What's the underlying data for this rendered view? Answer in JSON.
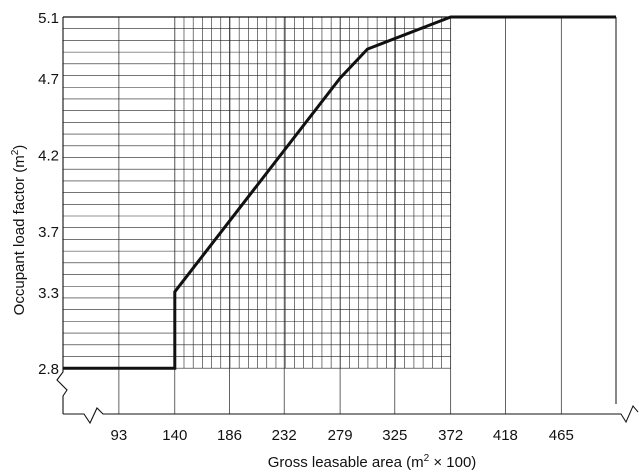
{
  "chart_data": {
    "type": "line",
    "title": "",
    "xlabel": "Gross leasable area (m",
    "xlabel_sup": "2",
    "xlabel_tail": " × 100)",
    "ylabel": "Occupant load factor (m",
    "ylabel_sup": "2",
    "ylabel_tail": ")",
    "x_ticks": [
      93,
      140,
      186,
      232,
      279,
      325,
      372,
      418,
      465
    ],
    "x_tick_labels": [
      "93",
      "140",
      "186",
      "232",
      "279",
      "325",
      "372",
      "418",
      "465"
    ],
    "y_ticks": [
      2.8,
      3.3,
      3.7,
      4.2,
      4.7,
      5.1
    ],
    "y_tick_labels": [
      "2.8",
      "3.3",
      "3.7",
      "4.2",
      "4.7",
      "5.1"
    ],
    "xlim": [
      46,
      511
    ],
    "ylim": [
      2.5,
      5.1
    ],
    "axis_breaks": [
      "x",
      "y"
    ],
    "grid": true,
    "series": [
      {
        "x": [
          46,
          140,
          140,
          279,
          302,
          372,
          511
        ],
        "y": [
          2.8,
          2.8,
          3.3,
          4.7,
          4.89,
          5.1,
          5.1
        ]
      }
    ]
  }
}
